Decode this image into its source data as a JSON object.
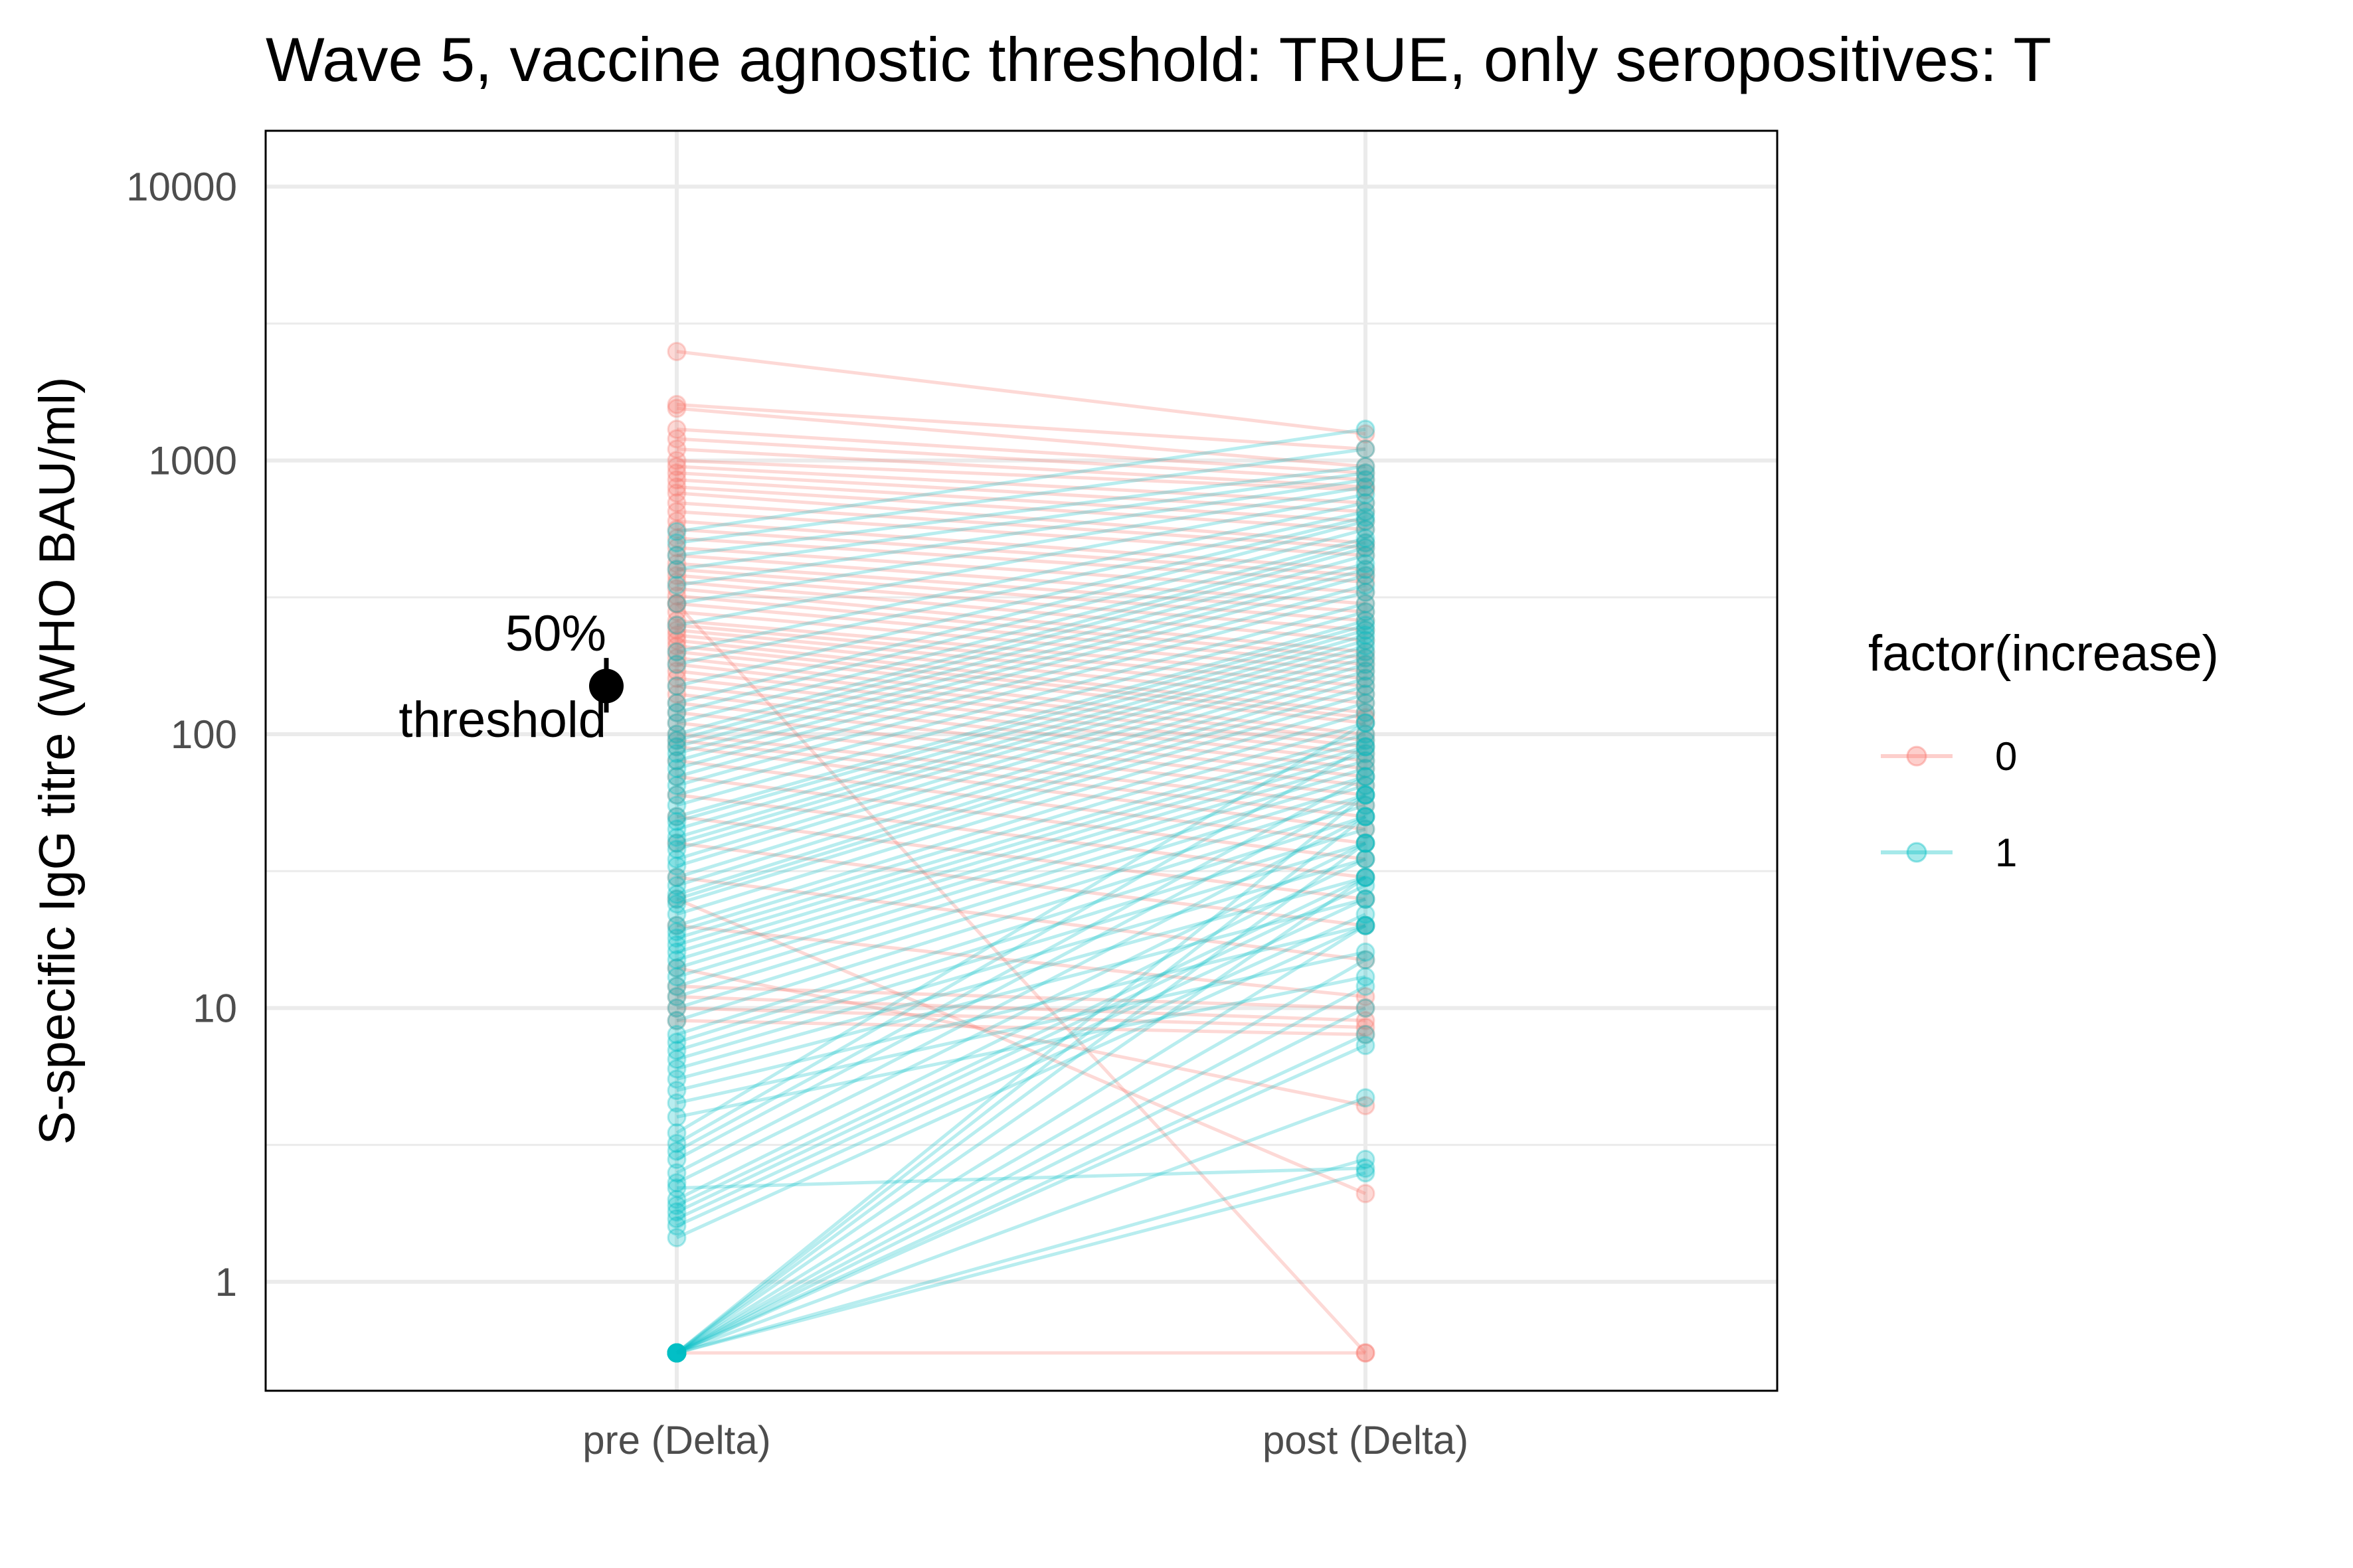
{
  "chart_data": {
    "type": "line",
    "title": "Wave 5, vaccine agnostic threshold: TRUE, only seropositives: T",
    "ylabel": "S-specific IgG titre (WHO BAU/ml)",
    "xlabel": "",
    "categories": [
      "pre (Delta)",
      "post (Delta)"
    ],
    "y_scale": "log10",
    "ylim": [
      0.4,
      16000
    ],
    "y_ticks": [
      1,
      10,
      100,
      1000,
      10000
    ],
    "y_tick_labels": [
      "1",
      "10",
      "100",
      "1000",
      "10000"
    ],
    "grid": true,
    "legend": {
      "title": "factor(increase)",
      "position": "right",
      "entries": [
        {
          "label": "0",
          "color": "#F8766D"
        },
        {
          "label": "1",
          "color": "#00BFC4"
        }
      ]
    },
    "annotation": {
      "text_line1": "50%",
      "text_line2": "threshold",
      "x_category": "pre (Delta)",
      "value": 150,
      "range": [
        120,
        190
      ]
    },
    "series": [
      {
        "name": "0",
        "color": "#F8766D",
        "pairs": [
          [
            2500,
            1250
          ],
          [
            1600,
            1100
          ],
          [
            1550,
            950
          ],
          [
            1300,
            900
          ],
          [
            1200,
            850
          ],
          [
            1100,
            800
          ],
          [
            1000,
            780
          ],
          [
            950,
            700
          ],
          [
            900,
            650
          ],
          [
            850,
            600
          ],
          [
            800,
            560
          ],
          [
            760,
            500
          ],
          [
            700,
            480
          ],
          [
            650,
            450
          ],
          [
            600,
            400
          ],
          [
            560,
            380
          ],
          [
            520,
            360
          ],
          [
            480,
            330
          ],
          [
            450,
            300
          ],
          [
            420,
            280
          ],
          [
            400,
            260
          ],
          [
            380,
            240
          ],
          [
            360,
            220
          ],
          [
            340,
            200
          ],
          [
            320,
            190
          ],
          [
            300,
            180
          ],
          [
            280,
            170
          ],
          [
            260,
            160
          ],
          [
            250,
            150
          ],
          [
            240,
            140
          ],
          [
            230,
            130
          ],
          [
            220,
            120
          ],
          [
            210,
            115
          ],
          [
            200,
            110
          ],
          [
            190,
            100
          ],
          [
            180,
            95
          ],
          [
            170,
            90
          ],
          [
            160,
            85
          ],
          [
            150,
            80
          ],
          [
            140,
            75
          ],
          [
            130,
            70
          ],
          [
            120,
            65
          ],
          [
            110,
            60
          ],
          [
            100,
            55
          ],
          [
            95,
            50
          ],
          [
            90,
            45
          ],
          [
            80,
            40
          ],
          [
            70,
            35
          ],
          [
            60,
            30
          ],
          [
            50,
            25
          ],
          [
            40,
            20
          ],
          [
            30,
            15
          ],
          [
            20,
            11
          ],
          [
            12,
            10
          ],
          [
            11,
            9
          ],
          [
            10,
            8.5
          ],
          [
            9,
            8
          ],
          [
            14,
            4.4
          ],
          [
            25,
            2.1
          ],
          [
            300,
            0.55
          ],
          [
            0.55,
            0.55
          ]
        ]
      },
      {
        "name": "1",
        "color": "#00BFC4",
        "pairs": [
          [
            550,
            1300
          ],
          [
            500,
            1100
          ],
          [
            450,
            950
          ],
          [
            400,
            900
          ],
          [
            350,
            850
          ],
          [
            300,
            800
          ],
          [
            250,
            750
          ],
          [
            200,
            700
          ],
          [
            180,
            650
          ],
          [
            150,
            620
          ],
          [
            130,
            600
          ],
          [
            120,
            560
          ],
          [
            110,
            520
          ],
          [
            100,
            500
          ],
          [
            95,
            480
          ],
          [
            90,
            450
          ],
          [
            85,
            420
          ],
          [
            80,
            400
          ],
          [
            75,
            380
          ],
          [
            70,
            350
          ],
          [
            65,
            330
          ],
          [
            60,
            300
          ],
          [
            55,
            280
          ],
          [
            50,
            260
          ],
          [
            48,
            250
          ],
          [
            45,
            240
          ],
          [
            42,
            230
          ],
          [
            40,
            220
          ],
          [
            38,
            210
          ],
          [
            35,
            200
          ],
          [
            33,
            190
          ],
          [
            30,
            180
          ],
          [
            28,
            170
          ],
          [
            26,
            160
          ],
          [
            25,
            150
          ],
          [
            24,
            140
          ],
          [
            22,
            130
          ],
          [
            20,
            120
          ],
          [
            19,
            110
          ],
          [
            18,
            100
          ],
          [
            17,
            95
          ],
          [
            16,
            90
          ],
          [
            15,
            85
          ],
          [
            14,
            80
          ],
          [
            13,
            75
          ],
          [
            12,
            70
          ],
          [
            11,
            65
          ],
          [
            10,
            60
          ],
          [
            9,
            55
          ],
          [
            8,
            50
          ],
          [
            7.5,
            45
          ],
          [
            7,
            40
          ],
          [
            6.5,
            35
          ],
          [
            6,
            30
          ],
          [
            5.5,
            25
          ],
          [
            5,
            20
          ],
          [
            4.5,
            16
          ],
          [
            4,
            13
          ],
          [
            3.5,
            110
          ],
          [
            3.2,
            90
          ],
          [
            3,
            70
          ],
          [
            2.8,
            60
          ],
          [
            2.5,
            50
          ],
          [
            2.3,
            40
          ],
          [
            2.2,
            2.6
          ],
          [
            2,
            35
          ],
          [
            1.9,
            30
          ],
          [
            1.8,
            28
          ],
          [
            1.7,
            25
          ],
          [
            1.6,
            22
          ],
          [
            1.45,
            20
          ],
          [
            0.55,
            60
          ],
          [
            0.55,
            40
          ],
          [
            0.55,
            30
          ],
          [
            0.55,
            20
          ],
          [
            0.55,
            15
          ],
          [
            0.55,
            12
          ],
          [
            0.55,
            10
          ],
          [
            0.55,
            8
          ],
          [
            0.55,
            7.3
          ],
          [
            0.55,
            4.7
          ],
          [
            0.55,
            2.8
          ],
          [
            0.55,
            2.5
          ],
          [
            0.55,
            50
          ]
        ]
      }
    ]
  }
}
